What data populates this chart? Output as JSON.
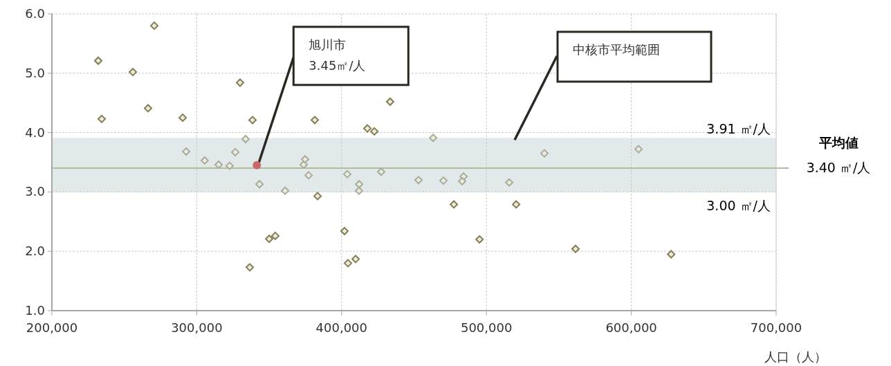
{
  "chart_data": {
    "type": "scatter",
    "x": [
      232000,
      234400,
      255900,
      266400,
      270700,
      290300,
      292700,
      305500,
      315100,
      322700,
      326600,
      329900,
      333700,
      336600,
      338500,
      343300,
      350000,
      354200,
      361000,
      373800,
      374800,
      377200,
      381500,
      383400,
      402000,
      403900,
      404400,
      409700,
      412100,
      412000,
      417800,
      422600,
      427300,
      433500,
      453100,
      463200,
      470300,
      477500,
      484200,
      483200,
      495200,
      515700,
      520500,
      540000,
      561500,
      605000,
      627500,
      341500
    ],
    "series": [
      {
        "type": "scatter",
        "marker": "diamond",
        "values": [
          5.21,
          4.23,
          5.02,
          4.41,
          5.8,
          4.25,
          3.68,
          3.53,
          3.46,
          3.44,
          3.67,
          4.84,
          3.89,
          1.73,
          4.21,
          3.13,
          2.21,
          2.26,
          3.02,
          3.46,
          3.55,
          3.28,
          4.21,
          2.93,
          2.34,
          3.3,
          1.8,
          1.87,
          3.13,
          3.02,
          4.07,
          4.02,
          3.34,
          4.52,
          3.2,
          3.91,
          3.19,
          2.79,
          3.26,
          3.18,
          2.2,
          3.16,
          2.79,
          3.65,
          2.04,
          3.72,
          1.95,
          null
        ],
        "colors": [
          "#857d50",
          "#857d50",
          "#857d50",
          "#857d50",
          "#857d50",
          "#857d50",
          "#a8ad98",
          "#a8ad98",
          "#a8ad98",
          "#a8ad98",
          "#a8ad98",
          "#857d50",
          "#a8ad98",
          "#857d50",
          "#857d50",
          "#a8ad98",
          "#857d50",
          "#857d50",
          "#a8ad98",
          "#a8ad98",
          "#a8ad98",
          "#a8ad98",
          "#857d50",
          "#857d50",
          "#857d50",
          "#a8ad98",
          "#857d50",
          "#857d50",
          "#a8ad98",
          "#a8ad98",
          "#857d50",
          "#857d50",
          "#a8ad98",
          "#857d50",
          "#a8ad98",
          "#a8ad98",
          "#a8ad98",
          "#857d50",
          "#a8ad98",
          "#a8ad98",
          "#857d50",
          "#a8ad98",
          "#857d50",
          "#a8ad98",
          "#857d50",
          "#a8ad98",
          "#857d50",
          null
        ]
      },
      {
        "type": "scatter",
        "marker": "circle",
        "color": "#c96a6a",
        "values": [
          null,
          null,
          null,
          null,
          null,
          null,
          null,
          null,
          null,
          null,
          null,
          null,
          null,
          null,
          null,
          null,
          null,
          null,
          null,
          null,
          null,
          null,
          null,
          null,
          null,
          null,
          null,
          null,
          null,
          null,
          null,
          null,
          null,
          null,
          null,
          null,
          null,
          null,
          null,
          null,
          null,
          null,
          null,
          null,
          null,
          null,
          null,
          3.45
        ]
      }
    ],
    "xlim": [
      200000,
      700000
    ],
    "xticks": [
      {
        "value": 200000,
        "label": "200,000"
      },
      {
        "value": 300000,
        "label": "300,000"
      },
      {
        "value": 400000,
        "label": "400,000"
      },
      {
        "value": 500000,
        "label": "500,000"
      },
      {
        "value": 600000,
        "label": "600,000"
      },
      {
        "value": 700000,
        "label": "700,000"
      }
    ],
    "ylim": [
      1.0,
      6.0
    ],
    "yticks": [
      {
        "value": 1,
        "label": "1.0"
      },
      {
        "value": 2,
        "label": "2.0"
      },
      {
        "value": 3,
        "label": "3.0"
      },
      {
        "value": 4,
        "label": "4.0"
      },
      {
        "value": 5,
        "label": "5.0"
      },
      {
        "value": 6,
        "label": "6.0"
      }
    ],
    "xlabel": "人口（人）",
    "grid": true,
    "bands": [
      {
        "axis": "y",
        "from": 3.0,
        "to": 3.91,
        "color": "#e1e9ea",
        "label": "中核市平均範囲"
      }
    ],
    "ref_lines": [
      {
        "axis": "y",
        "value": 3.4,
        "color": "#b3bb9b",
        "label": "平均値\n3.40 ㎡/人"
      }
    ],
    "annotations": [
      {
        "text": "旭川市\n3.45㎡/人",
        "x": 341500,
        "y": 3.45
      },
      {
        "text": "3.91 ㎡/人",
        "y": 3.91
      },
      {
        "text": "3.00 ㎡/人",
        "y": 3.0
      }
    ]
  }
}
